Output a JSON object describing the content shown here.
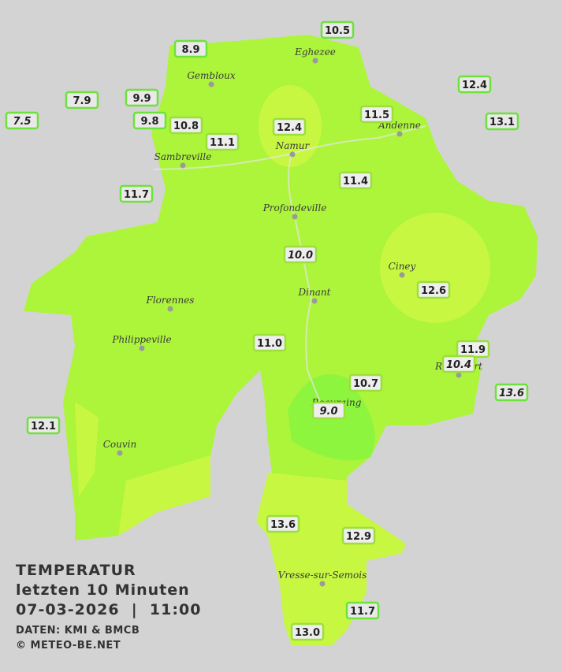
{
  "header": {
    "title": "TEMPERATUR",
    "subtitle": "letzten 10 Minuten",
    "timestamp": "07-03-2026  |  11:00",
    "source": "DATEN: KMI & BMCB",
    "copyright": "© METEO-BE.NET"
  },
  "towns": [
    {
      "name": "Eghezee"
    },
    {
      "name": "Gembloux"
    },
    {
      "name": "Andenne"
    },
    {
      "name": "Namur"
    },
    {
      "name": "Sambreville"
    },
    {
      "name": "Profondeville"
    },
    {
      "name": "Ciney"
    },
    {
      "name": "Dinant"
    },
    {
      "name": "Florennes"
    },
    {
      "name": "Philippeville"
    },
    {
      "name": "Rochefort"
    },
    {
      "name": "Beauraing"
    },
    {
      "name": "Couvin"
    },
    {
      "name": "Vresse-sur-Semois"
    }
  ],
  "stations": [
    {
      "label": "10.5"
    },
    {
      "label": "8.9"
    },
    {
      "label": "7.9"
    },
    {
      "label": "9.9"
    },
    {
      "label": "7.5"
    },
    {
      "label": "9.8"
    },
    {
      "label": "10.8"
    },
    {
      "label": "11.1"
    },
    {
      "label": "12.4"
    },
    {
      "label": "11.5"
    },
    {
      "label": "12.4"
    },
    {
      "label": "13.1"
    },
    {
      "label": "11.7"
    },
    {
      "label": "11.4"
    },
    {
      "label": "10.0"
    },
    {
      "label": "12.6"
    },
    {
      "label": "11.0"
    },
    {
      "label": "11.9"
    },
    {
      "label": "10.4"
    },
    {
      "label": "13.6"
    },
    {
      "label": "10.7"
    },
    {
      "label": "9.0"
    },
    {
      "label": "12.1"
    },
    {
      "label": "13.6"
    },
    {
      "label": "12.9"
    },
    {
      "label": "11.7"
    },
    {
      "label": "13.0"
    }
  ]
}
